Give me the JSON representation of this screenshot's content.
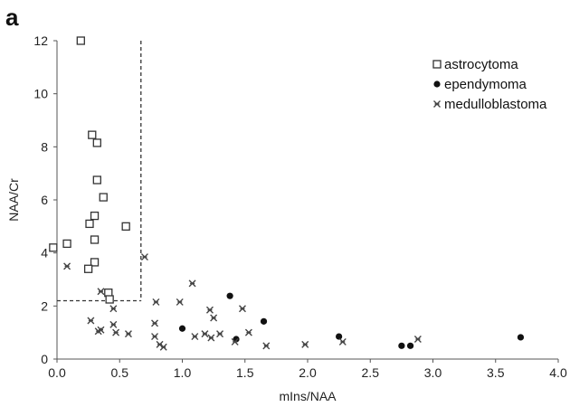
{
  "panel_label": "a",
  "chart_data": {
    "type": "scatter",
    "xlabel": "mIns/NAA",
    "ylabel": "NAA/Cr",
    "xlim": [
      0,
      4.0
    ],
    "ylim": [
      0,
      12
    ],
    "x_ticks": [
      "0.0",
      "0.5",
      "1.0",
      "1.5",
      "2.0",
      "2.5",
      "3.0",
      "3.5",
      "4.0"
    ],
    "y_ticks": [
      "0",
      "2",
      "4",
      "6",
      "8",
      "10",
      "12"
    ],
    "grid": false,
    "legend_position": "top-right",
    "cutoff_lines": {
      "x": 0.67,
      "y": 2.2,
      "style": "dashed"
    },
    "series": [
      {
        "name": "astrocytoma",
        "marker": "open-square",
        "color": "#333333",
        "points": [
          [
            0.19,
            12.0
          ],
          [
            0.28,
            8.45
          ],
          [
            0.32,
            8.15
          ],
          [
            0.32,
            6.75
          ],
          [
            0.37,
            6.1
          ],
          [
            0.26,
            5.1
          ],
          [
            0.3,
            5.4
          ],
          [
            0.55,
            5.0
          ],
          [
            -0.03,
            4.2
          ],
          [
            0.08,
            4.35
          ],
          [
            0.3,
            4.5
          ],
          [
            0.3,
            3.65
          ],
          [
            0.25,
            3.4
          ],
          [
            0.41,
            2.5
          ],
          [
            0.42,
            2.25
          ]
        ]
      },
      {
        "name": "ependymoma",
        "marker": "filled-circle",
        "color": "#111111",
        "points": [
          [
            1.0,
            1.15
          ],
          [
            1.38,
            2.38
          ],
          [
            1.43,
            0.75
          ],
          [
            1.65,
            1.42
          ],
          [
            2.25,
            0.85
          ],
          [
            2.75,
            0.5
          ],
          [
            2.82,
            0.5
          ],
          [
            3.7,
            0.82
          ]
        ]
      },
      {
        "name": "medulloblastoma",
        "marker": "asterisk",
        "color": "#444444",
        "points": [
          [
            0.08,
            3.5
          ],
          [
            0.35,
            2.55
          ],
          [
            0.45,
            1.9
          ],
          [
            0.27,
            1.45
          ],
          [
            0.33,
            1.05
          ],
          [
            0.35,
            1.1
          ],
          [
            0.45,
            1.3
          ],
          [
            0.47,
            1.0
          ],
          [
            0.57,
            0.95
          ],
          [
            0.7,
            3.85
          ],
          [
            0.79,
            2.15
          ],
          [
            0.78,
            1.35
          ],
          [
            0.78,
            0.85
          ],
          [
            0.82,
            0.55
          ],
          [
            0.85,
            0.45
          ],
          [
            0.98,
            2.15
          ],
          [
            1.08,
            2.85
          ],
          [
            1.1,
            0.85
          ],
          [
            1.18,
            0.95
          ],
          [
            1.22,
            1.85
          ],
          [
            1.25,
            1.55
          ],
          [
            1.23,
            0.8
          ],
          [
            1.3,
            0.95
          ],
          [
            1.42,
            0.65
          ],
          [
            1.48,
            1.9
          ],
          [
            1.53,
            1.0
          ],
          [
            1.67,
            0.5
          ],
          [
            1.98,
            0.55
          ],
          [
            2.28,
            0.65
          ],
          [
            2.88,
            0.75
          ]
        ]
      }
    ]
  }
}
